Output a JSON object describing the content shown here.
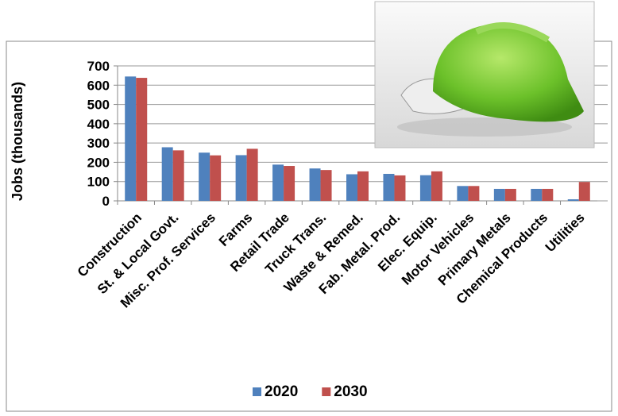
{
  "chart_data": {
    "type": "bar",
    "y_label": "Jobs (thousands)",
    "categories": [
      "Construction",
      "St. & Local Govt.",
      "Misc. Prof. Services",
      "Farms",
      "Retail Trade",
      "Truck Trans.",
      "Waste & Remed.",
      "Fab. Metal. Prod.",
      "Elec. Equip.",
      "Motor Vehicles",
      "Primary Metals",
      "Chemical Products",
      "Utilities"
    ],
    "series": [
      {
        "name": "2020",
        "color": "#4f81bd",
        "values": [
          645,
          278,
          250,
          237,
          188,
          168,
          138,
          140,
          133,
          77,
          62,
          62,
          8
        ]
      },
      {
        "name": "2030",
        "color": "#c0504d",
        "values": [
          638,
          262,
          236,
          270,
          181,
          160,
          153,
          132,
          153,
          77,
          62,
          62,
          98
        ]
      }
    ],
    "ylim": [
      0,
      700
    ],
    "yticks": [
      0,
      100,
      200,
      300,
      400,
      500,
      600,
      700
    ],
    "grid": true,
    "legend": "bottom"
  }
}
